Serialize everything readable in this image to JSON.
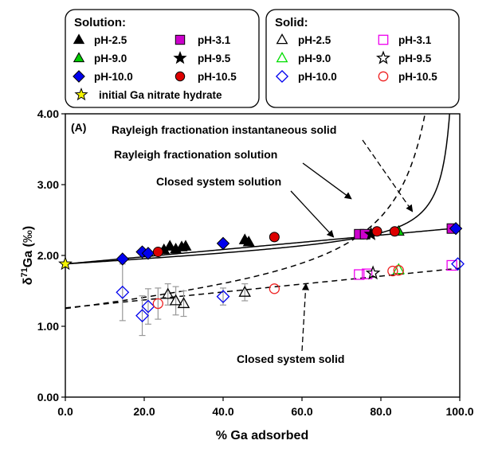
{
  "chart_data": {
    "type": "scatter",
    "panel_label": "(A)",
    "xlabel": "% Ga adsorbed",
    "ylabel": "δ71Ga (‰)",
    "xlim": [
      0,
      100
    ],
    "ylim": [
      0,
      4
    ],
    "x_ticks": [
      "0.0",
      "20.0",
      "40.0",
      "60.0",
      "80.0",
      "100.0"
    ],
    "y_ticks": [
      "0.00",
      "1.00",
      "2.00",
      "3.00",
      "4.00"
    ],
    "legend_solution": {
      "title": "Solution:",
      "entries": [
        {
          "label": "pH-2.5",
          "series": "sol-ph2.5"
        },
        {
          "label": "pH-9.0",
          "series": "sol-ph9.0"
        },
        {
          "label": "pH-10.0",
          "series": "sol-ph10.0"
        },
        {
          "label": "initial Ga nitrate hydrate",
          "series": "initial"
        },
        {
          "label": "pH-3.1",
          "series": "sol-ph3.1"
        },
        {
          "label": "pH-9.5",
          "series": "sol-ph9.5"
        },
        {
          "label": "pH-10.5",
          "series": "sol-ph10.5"
        }
      ]
    },
    "legend_solid": {
      "title": "Solid:",
      "entries": [
        {
          "label": "pH-2.5",
          "series": "solid-ph2.5"
        },
        {
          "label": "pH-9.0",
          "series": "solid-ph9.0"
        },
        {
          "label": "pH-10.0",
          "series": "solid-ph10.0"
        },
        {
          "label": "pH-3.1",
          "series": "solid-ph3.1"
        },
        {
          "label": "pH-9.5",
          "series": "solid-ph9.5"
        },
        {
          "label": "pH-10.5",
          "series": "solid-ph10.5"
        }
      ]
    },
    "series": [
      {
        "id": "initial",
        "marker": "star",
        "fill": "#f5f500",
        "stroke": "#000000",
        "points": [
          {
            "x": 0,
            "y": 1.88
          }
        ]
      },
      {
        "id": "sol-ph2.5",
        "marker": "triangle",
        "fill": "#000000",
        "stroke": "#000000",
        "points": [
          {
            "x": 25,
            "y": 2.08
          },
          {
            "x": 26.5,
            "y": 2.13
          },
          {
            "x": 28,
            "y": 2.09
          },
          {
            "x": 29.5,
            "y": 2.12
          },
          {
            "x": 30.5,
            "y": 2.13
          },
          {
            "x": 45.5,
            "y": 2.22
          },
          {
            "x": 46.5,
            "y": 2.19
          }
        ]
      },
      {
        "id": "sol-ph3.1",
        "marker": "square",
        "fill": "#cc00cc",
        "stroke": "#000000",
        "points": [
          {
            "x": 74.5,
            "y": 2.3
          },
          {
            "x": 76,
            "y": 2.3
          },
          {
            "x": 98,
            "y": 2.38
          }
        ]
      },
      {
        "id": "sol-ph9.0",
        "marker": "triangle",
        "fill": "#00cc00",
        "stroke": "#000000",
        "points": [
          {
            "x": 84.5,
            "y": 2.34
          }
        ]
      },
      {
        "id": "sol-ph9.5",
        "marker": "star",
        "fill": "#000000",
        "stroke": "#000000",
        "points": [
          {
            "x": 77.5,
            "y": 2.3
          }
        ]
      },
      {
        "id": "sol-ph10.0",
        "marker": "diamond",
        "fill": "#0000ee",
        "stroke": "#000000",
        "points": [
          {
            "x": 14.5,
            "y": 1.95
          },
          {
            "x": 19.5,
            "y": 2.05
          },
          {
            "x": 21,
            "y": 2.03
          },
          {
            "x": 40,
            "y": 2.17
          },
          {
            "x": 99,
            "y": 2.38
          }
        ]
      },
      {
        "id": "sol-ph10.5",
        "marker": "circle",
        "fill": "#dd0000",
        "stroke": "#000000",
        "points": [
          {
            "x": 23.5,
            "y": 2.05
          },
          {
            "x": 53,
            "y": 2.26
          },
          {
            "x": 79,
            "y": 2.34
          },
          {
            "x": 83.5,
            "y": 2.34
          }
        ]
      },
      {
        "id": "solid-ph2.5",
        "marker": "triangle",
        "fill": "none",
        "stroke": "#000000",
        "points": [
          {
            "x": 26,
            "y": 1.45,
            "err": 0.15
          },
          {
            "x": 28,
            "y": 1.36,
            "err": 0.2
          },
          {
            "x": 30,
            "y": 1.32,
            "err": 0.18
          },
          {
            "x": 45.5,
            "y": 1.48,
            "err": 0.12
          }
        ]
      },
      {
        "id": "solid-ph3.1",
        "marker": "square",
        "fill": "none",
        "stroke": "#ee00ee",
        "points": [
          {
            "x": 74.5,
            "y": 1.73
          },
          {
            "x": 76.5,
            "y": 1.74
          },
          {
            "x": 98,
            "y": 1.86
          }
        ]
      },
      {
        "id": "solid-ph9.0",
        "marker": "triangle",
        "fill": "none",
        "stroke": "#00dd00",
        "points": [
          {
            "x": 84.5,
            "y": 1.8
          }
        ]
      },
      {
        "id": "solid-ph9.5",
        "marker": "star",
        "fill": "none",
        "stroke": "#000000",
        "points": [
          {
            "x": 78,
            "y": 1.75
          }
        ]
      },
      {
        "id": "solid-ph10.0",
        "marker": "diamond",
        "fill": "none",
        "stroke": "#0000ee",
        "points": [
          {
            "x": 14.5,
            "y": 1.48,
            "err": 0.4
          },
          {
            "x": 19.5,
            "y": 1.15,
            "err": 0.28
          },
          {
            "x": 21,
            "y": 1.28,
            "err": 0.25
          },
          {
            "x": 40,
            "y": 1.42,
            "err": 0.12
          },
          {
            "x": 99.5,
            "y": 1.88
          }
        ]
      },
      {
        "id": "solid-ph10.5",
        "marker": "circle",
        "fill": "none",
        "stroke": "#ee2222",
        "points": [
          {
            "x": 23.5,
            "y": 1.32,
            "err": 0.22
          },
          {
            "x": 53,
            "y": 1.53
          },
          {
            "x": 83,
            "y": 1.78
          },
          {
            "x": 84.5,
            "y": 1.79
          }
        ]
      }
    ],
    "model_curves": [
      {
        "id": "rayleigh-solid",
        "style": "solid",
        "alpha": 1.0008,
        "kind": "rayleigh_solid",
        "y0": 1.88
      },
      {
        "id": "rayleigh-solution",
        "style": "solid",
        "alpha": 1.0008,
        "kind": "rayleigh_solution",
        "y0": 1.88
      },
      {
        "id": "closed-solution",
        "style": "dashed",
        "kind": "linear",
        "y0": 1.88,
        "slope": 0.005
      },
      {
        "id": "closed-solid",
        "style": "dashed",
        "kind": "linear",
        "y0": 1.26,
        "slope": 0.0055
      }
    ],
    "annotations": [
      {
        "text": "Rayleigh fractionation instantaneous solid",
        "arrow_to": {
          "x": 88,
          "y": 2.62
        },
        "arrow_style": "dashed"
      },
      {
        "text": "Rayleigh fractionation solution",
        "arrow_to": {
          "x": 72.5,
          "y": 2.8
        },
        "arrow_style": "solid"
      },
      {
        "text": "Closed system solution",
        "arrow_to": {
          "x": 68,
          "y": 2.26
        },
        "arrow_style": "solid"
      },
      {
        "text": "Closed system solid",
        "arrow_to": {
          "x": 61,
          "y": 1.6
        },
        "arrow_style": "dashed"
      }
    ]
  }
}
